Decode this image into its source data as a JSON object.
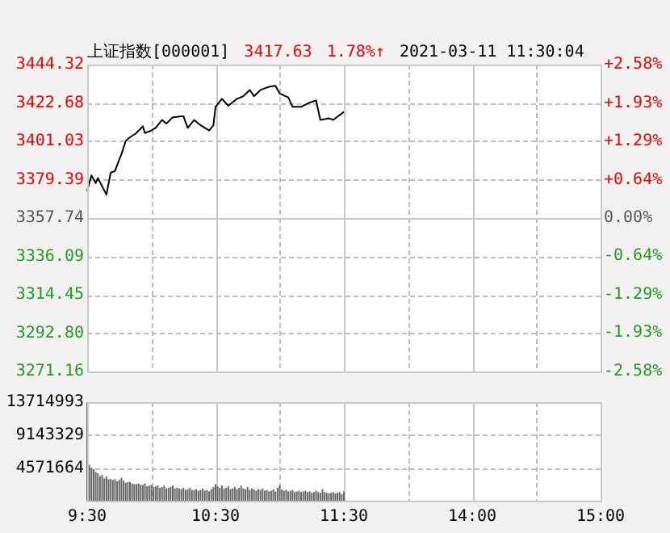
{
  "chart_data": [
    {
      "type": "line",
      "title": "上证指数[000001]",
      "annotations": [
        "3417.63",
        "1.78%↑",
        "2021-03-11 11:30:04"
      ],
      "categories": [
        null,
        null,
        null,
        null,
        null,
        null,
        null,
        null,
        null,
        null,
        null,
        null,
        null,
        null,
        null,
        null,
        null,
        null,
        null,
        null,
        null,
        null,
        null,
        null,
        null,
        null,
        null,
        null,
        null,
        null,
        null,
        null,
        null,
        null,
        null,
        null,
        null,
        null,
        null,
        null,
        null,
        null,
        null,
        null,
        null,
        null,
        null,
        null,
        null,
        null,
        null,
        null,
        null,
        null,
        null,
        null,
        null,
        null,
        null,
        null,
        null,
        null,
        null,
        null,
        null,
        null,
        null,
        null,
        null,
        null,
        null,
        null,
        null,
        null,
        null,
        null,
        null,
        null,
        null,
        null,
        null,
        null,
        null,
        null,
        null,
        null,
        null,
        null,
        null,
        null,
        null,
        null,
        null,
        null,
        null,
        null,
        null,
        null,
        null,
        null,
        null,
        null,
        null,
        null,
        null,
        null,
        null,
        null,
        null,
        null,
        null,
        null,
        null,
        null,
        null,
        null,
        null,
        null,
        null,
        null,
        null,
        null,
        null,
        null,
        null,
        null,
        null,
        null,
        null,
        null,
        null,
        null,
        null,
        null,
        null,
        null,
        null,
        null,
        null,
        null,
        null,
        null,
        null,
        null,
        null,
        null,
        null,
        null,
        null,
        null,
        null,
        null,
        null,
        null,
        null,
        null,
        null,
        null,
        null,
        null,
        null,
        null,
        null,
        null,
        null,
        null,
        null,
        null,
        null,
        null,
        null,
        null,
        null,
        null,
        null,
        null,
        null,
        null,
        null,
        null,
        null,
        null,
        null,
        null,
        null,
        null,
        null,
        null,
        null,
        null,
        null,
        null,
        null,
        null,
        null,
        null,
        null,
        null,
        null,
        null,
        null,
        null,
        null,
        null,
        null,
        null,
        null,
        null,
        null,
        null,
        null,
        null,
        null,
        null,
        null,
        null,
        null,
        null,
        null,
        null,
        null,
        null,
        null,
        null,
        null,
        null,
        null,
        null,
        null,
        null,
        null,
        null,
        null,
        null,
        null,
        null,
        null,
        null,
        null,
        null,
        null
      ],
      "series": [
        {
          "color": "#000000",
          "values": [
            3373.0,
            3377.4,
            3381.8,
            3379.6,
            3377.4,
            3380.3,
            3378.0,
            3375.6,
            3373.3,
            3370.9,
            3377.2,
            3383.4,
            3383.8,
            3384.2,
            3387.5,
            3390.8,
            3393.7,
            3397.5,
            3401.2,
            3402.3,
            3403.3,
            3404.1,
            3404.9,
            3405.7,
            3407.0,
            3408.2,
            3409.5,
            3405.7,
            3406.2,
            3406.6,
            3407.1,
            3407.9,
            3408.6,
            3410.1,
            3411.6,
            3413.1,
            3412.1,
            3411.0,
            3412.2,
            3413.4,
            3414.6,
            3414.7,
            3414.8,
            3415.0,
            3415.1,
            3415.2,
            3411.9,
            3408.6,
            3410.1,
            3411.6,
            3413.1,
            3412.1,
            3411.1,
            3410.1,
            3409.4,
            3408.6,
            3407.9,
            3407.1,
            3408.6,
            3410.1,
            3420.5,
            3422.0,
            3423.5,
            3425.0,
            3423.7,
            3422.4,
            3421.1,
            3422.1,
            3423.1,
            3424.0,
            3425.0,
            3425.5,
            3426.0,
            3426.5,
            3427.7,
            3428.8,
            3430.0,
            3428.3,
            3426.5,
            3427.7,
            3428.8,
            3430.0,
            3430.5,
            3430.9,
            3431.4,
            3431.8,
            3432.0,
            3432.2,
            3432.4,
            3430.2,
            3428.0,
            3427.5,
            3426.9,
            3426.4,
            3425.8,
            3423.2,
            3420.5,
            3420.5,
            3420.5,
            3420.5,
            3420.5,
            3421.1,
            3421.7,
            3422.3,
            3422.9,
            3423.3,
            3423.7,
            3424.1,
            3418.6,
            3413.1,
            3413.3,
            3413.6,
            3413.8,
            3414.0,
            3413.6,
            3413.1,
            3414.0,
            3414.9,
            3415.8,
            3416.7,
            3417.63,
            null,
            null,
            null,
            null,
            null,
            null,
            null,
            null,
            null,
            null,
            null,
            null,
            null,
            null,
            null,
            null,
            null,
            null,
            null,
            null,
            null,
            null,
            null,
            null,
            null,
            null,
            null,
            null,
            null,
            null,
            null,
            null,
            null,
            null,
            null,
            null,
            null,
            null,
            null,
            null,
            null,
            null,
            null,
            null,
            null,
            null,
            null,
            null,
            null,
            null,
            null,
            null,
            null,
            null,
            null,
            null,
            null,
            null,
            null,
            null,
            null,
            null,
            null,
            null,
            null,
            null,
            null,
            null,
            null,
            null,
            null,
            null,
            null,
            null,
            null,
            null,
            null,
            null,
            null,
            null,
            null,
            null,
            null,
            null,
            null,
            null,
            null,
            null,
            null,
            null,
            null,
            null,
            null,
            null,
            null,
            null,
            null,
            null,
            null,
            null,
            null,
            null,
            null,
            null,
            null,
            null,
            null,
            null,
            null,
            null,
            null,
            null,
            null,
            null,
            null,
            null,
            null,
            null,
            null,
            null
          ]
        }
      ],
      "ylim": [
        3271.16,
        3444.32
      ],
      "yticks": [
        3271.16,
        {
          "value": 3292.8,
          "label": "3292.80"
        },
        3314.45,
        3336.09,
        3357.74,
        3379.39,
        3401.03,
        3422.68,
        3444.32
      ],
      "y2lim": [
        -2.58,
        2.58
      ],
      "y2ticks": [
        {
          "value": -2.58,
          "label": "-2.58%"
        },
        {
          "value": -1.93,
          "label": "-1.93%"
        },
        {
          "value": -1.29,
          "label": "-1.29%"
        },
        {
          "value": -0.64,
          "label": "-0.64%"
        },
        {
          "value": 0,
          "label": "0.00%"
        },
        {
          "value": 0.64,
          "label": "+0.64%"
        },
        {
          "value": 1.29,
          "label": "+1.29%"
        },
        {
          "value": 1.93,
          "label": "+1.93%"
        },
        {
          "value": 2.58,
          "label": "+2.58%"
        }
      ],
      "tick_labels": "y",
      "grid": true
    },
    {
      "type": "bar",
      "categories": [
        "9:30",
        null,
        null,
        null,
        null,
        null,
        null,
        null,
        null,
        null,
        null,
        null,
        null,
        null,
        null,
        null,
        null,
        null,
        null,
        null,
        null,
        null,
        null,
        null,
        null,
        null,
        null,
        null,
        null,
        null,
        null,
        null,
        null,
        null,
        null,
        null,
        null,
        null,
        null,
        null,
        null,
        null,
        null,
        null,
        null,
        null,
        null,
        null,
        null,
        null,
        null,
        null,
        null,
        null,
        null,
        null,
        null,
        null,
        null,
        null,
        "10:30",
        null,
        null,
        null,
        null,
        null,
        null,
        null,
        null,
        null,
        null,
        null,
        null,
        null,
        null,
        null,
        null,
        null,
        null,
        null,
        null,
        null,
        null,
        null,
        null,
        null,
        null,
        null,
        null,
        null,
        null,
        null,
        null,
        null,
        null,
        null,
        null,
        null,
        null,
        null,
        null,
        null,
        null,
        null,
        null,
        null,
        null,
        null,
        null,
        null,
        null,
        null,
        null,
        null,
        null,
        null,
        null,
        null,
        null,
        null,
        "11:30",
        null,
        null,
        null,
        null,
        null,
        null,
        null,
        null,
        null,
        null,
        null,
        null,
        null,
        null,
        null,
        null,
        null,
        null,
        null,
        null,
        null,
        null,
        null,
        null,
        null,
        null,
        null,
        null,
        null,
        null,
        null,
        null,
        null,
        null,
        null,
        null,
        null,
        null,
        null,
        null,
        null,
        null,
        null,
        null,
        null,
        null,
        null,
        null,
        null,
        null,
        null,
        null,
        null,
        null,
        null,
        null,
        null,
        null,
        null,
        "14:00",
        null,
        null,
        null,
        null,
        null,
        null,
        null,
        null,
        null,
        null,
        null,
        null,
        null,
        null,
        null,
        null,
        null,
        null,
        null,
        null,
        null,
        null,
        null,
        null,
        null,
        null,
        null,
        null,
        null,
        null,
        null,
        null,
        null,
        null,
        null,
        null,
        null,
        null,
        null,
        null,
        null,
        null,
        null,
        null,
        null,
        null,
        null,
        null,
        null,
        null,
        null,
        null,
        null,
        null,
        null,
        null,
        null,
        null,
        null,
        "15:00"
      ],
      "series": [
        {
          "color": "#666666",
          "values": [
            13700000,
            5000000,
            4600000,
            4400000,
            4000000,
            3800000,
            3400000,
            3600000,
            3100000,
            3400000,
            3000000,
            3000000,
            2900000,
            3000000,
            2700000,
            2900000,
            3200000,
            2800000,
            2500000,
            2600000,
            2600000,
            2400000,
            2300000,
            2300000,
            2400000,
            2200000,
            2200000,
            2400000,
            2000000,
            2100000,
            2200000,
            1900000,
            2000000,
            2100000,
            1800000,
            1900000,
            2100000,
            1700000,
            1800000,
            1900000,
            2100000,
            1700000,
            1800000,
            1700000,
            1600000,
            1800000,
            1500000,
            1600000,
            1800000,
            1500000,
            1500000,
            1600000,
            1400000,
            1500000,
            1700000,
            1400000,
            1500000,
            1300000,
            1600000,
            1900000,
            2300000,
            2000000,
            1800000,
            2100000,
            1700000,
            1800000,
            2000000,
            1600000,
            1700000,
            1900000,
            1600000,
            1800000,
            2100000,
            1700000,
            1600000,
            1900000,
            1500000,
            1700000,
            1600000,
            1400000,
            1600000,
            1500000,
            1700000,
            1400000,
            1500000,
            1300000,
            1400000,
            1600000,
            1300000,
            1800000,
            2100000,
            1600000,
            1400000,
            1500000,
            1300000,
            1400000,
            1500000,
            1200000,
            1300000,
            1400000,
            1200000,
            1300000,
            1400000,
            1200000,
            1300000,
            1100000,
            1200000,
            1400000,
            1200000,
            1100000,
            1600000,
            1200000,
            1100000,
            1000000,
            1100000,
            1200000,
            1000000,
            1100000,
            1200000,
            900000,
            1300000,
            null,
            null,
            null,
            null,
            null,
            null,
            null,
            null,
            null,
            null,
            null,
            null,
            null,
            null,
            null,
            null,
            null,
            null,
            null,
            null,
            null,
            null,
            null,
            null,
            null,
            null,
            null,
            null,
            null,
            null,
            null,
            null,
            null,
            null,
            null,
            null,
            null,
            null,
            null,
            null,
            null,
            null,
            null,
            null,
            null,
            null,
            null,
            null,
            null,
            null,
            null,
            null,
            null,
            null,
            null,
            null,
            null,
            null,
            null,
            null,
            null,
            null,
            null,
            null,
            null,
            null,
            null,
            null,
            null,
            null,
            null,
            null,
            null,
            null,
            null,
            null,
            null,
            null,
            null,
            null,
            null,
            null,
            null,
            null,
            null,
            null,
            null,
            null,
            null,
            null,
            null,
            null,
            null,
            null,
            null,
            null,
            null,
            null,
            null,
            null,
            null,
            null,
            null,
            null,
            null,
            null,
            null,
            null,
            null,
            null,
            null,
            null,
            null,
            null,
            null,
            null,
            null,
            null,
            null,
            null
          ]
        }
      ],
      "ylim": [
        0,
        13714993
      ],
      "yticks": [
        4571664,
        9143329,
        13714993
      ],
      "grid": true
    }
  ]
}
